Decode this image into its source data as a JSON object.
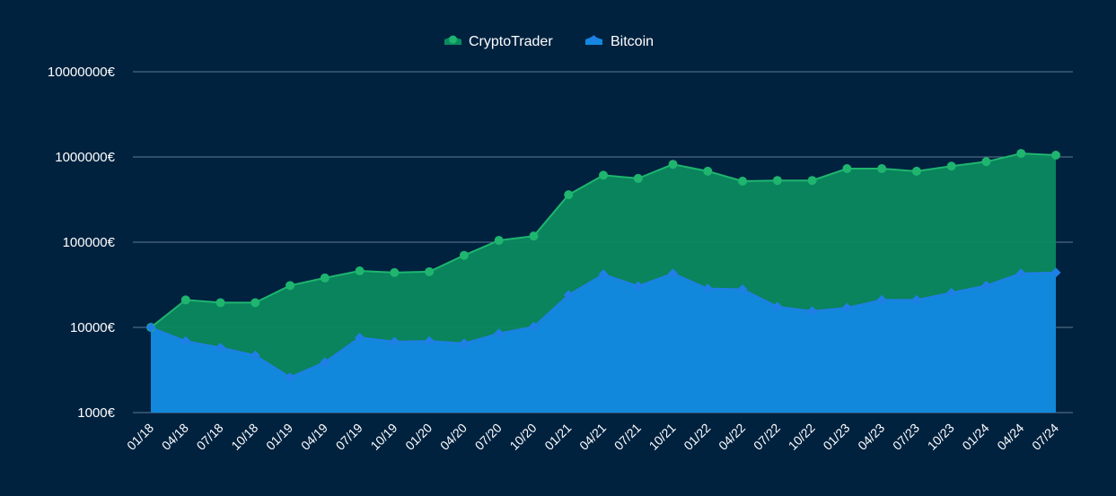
{
  "chart_data": {
    "type": "area",
    "title": "",
    "xlabel": "",
    "ylabel": "",
    "y_scale": "log",
    "ylim": [
      1000,
      10000000
    ],
    "y_ticks": [
      1000,
      10000,
      100000,
      1000000,
      10000000
    ],
    "y_tick_labels": [
      "1000€",
      "10000€",
      "100000€",
      "1000000€",
      "10000000€"
    ],
    "grid": true,
    "legend_position": "top-center",
    "categories": [
      "01/18",
      "04/18",
      "07/18",
      "10/18",
      "01/19",
      "04/19",
      "07/19",
      "10/19",
      "01/20",
      "04/20",
      "07/20",
      "10/20",
      "01/21",
      "04/21",
      "07/21",
      "10/21",
      "01/22",
      "04/22",
      "07/22",
      "10/22",
      "01/23",
      "04/23",
      "07/23",
      "10/23",
      "01/24",
      "04/24",
      "07/24"
    ],
    "series": [
      {
        "name": "CryptoTrader",
        "color": "#0a8a5e",
        "line_color": "#1fb56f",
        "marker": "circle",
        "values": [
          10000,
          21000,
          19500,
          19500,
          31000,
          38000,
          46000,
          44000,
          45000,
          70000,
          105000,
          118000,
          360000,
          610000,
          560000,
          820000,
          680000,
          520000,
          530000,
          530000,
          730000,
          730000,
          680000,
          780000,
          880000,
          1100000,
          1050000
        ]
      },
      {
        "name": "Bitcoin",
        "color": "#1288df",
        "line_color": "#1f7fe6",
        "marker": "diamond",
        "values": [
          10000,
          6900,
          5800,
          4700,
          2600,
          3900,
          7600,
          6800,
          6900,
          6500,
          8500,
          10200,
          24000,
          42000,
          30500,
          43000,
          28500,
          28000,
          17500,
          15500,
          17000,
          21000,
          21000,
          25500,
          31000,
          43000,
          44000
        ]
      }
    ]
  }
}
